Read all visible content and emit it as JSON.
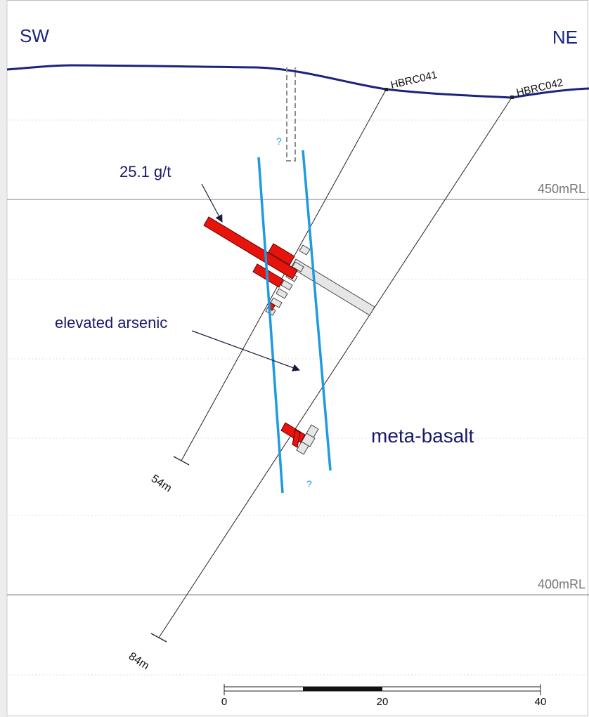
{
  "orientation": {
    "left": "SW",
    "right": "NE"
  },
  "levels": [
    {
      "label": "450mRL"
    },
    {
      "label": "400mRL"
    }
  ],
  "drillholes": [
    {
      "id": "HBRC041",
      "end_depth": "54m"
    },
    {
      "id": "HBRC042",
      "end_depth": "84m"
    }
  ],
  "annotations": {
    "grade": "25.1 g/t",
    "arsenic": "elevated arsenic",
    "lithology": "meta-basalt",
    "uncertain_mark": "?"
  },
  "scale_bar": {
    "ticks": [
      "0",
      "20",
      "40"
    ]
  },
  "colors": {
    "topography": "#1a237e",
    "structure": "#1e9be0",
    "gold_intercept": "#e8140c",
    "arsenic_intercept": "#e6e6e6",
    "gridline": "#999999"
  }
}
